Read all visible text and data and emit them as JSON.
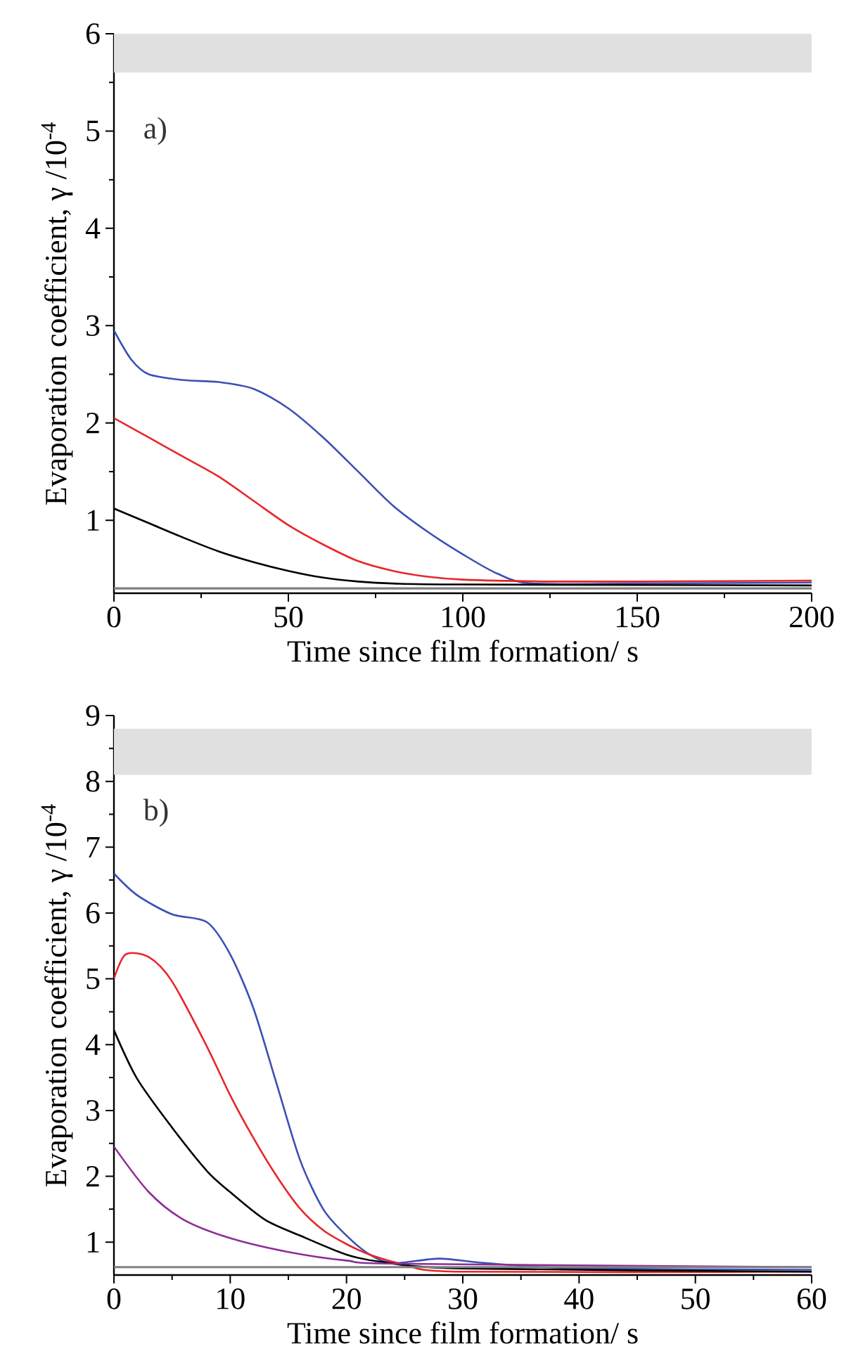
{
  "chart_data": [
    {
      "type": "line",
      "xlabel": "Time since film formation/ s",
      "ylabel": "Evaporation coefficient, γ /10$^{-4}$",
      "annotations": [
        "a)"
      ],
      "xlim": [
        0,
        200
      ],
      "ylim": [
        0.25,
        6
      ],
      "xticks": [
        0,
        50,
        100,
        150,
        200
      ],
      "yticks": [
        1,
        2,
        3,
        4,
        5,
        6
      ],
      "bands": [
        {
          "axis": "y",
          "from": 5.6,
          "to": 6,
          "color": "#e0e0e0"
        }
      ],
      "ref_lines": [
        {
          "axis": "y",
          "value": 0.3,
          "color": "#808080"
        }
      ],
      "series": [
        {
          "color": "#3c50b4",
          "x": [
            0,
            5,
            10,
            20,
            30,
            40,
            50,
            60,
            70,
            80,
            90,
            100,
            110,
            120,
            150,
            200
          ],
          "values": [
            2.95,
            2.65,
            2.5,
            2.44,
            2.42,
            2.35,
            2.15,
            1.85,
            1.5,
            1.15,
            0.88,
            0.65,
            0.45,
            0.35,
            0.35,
            0.36
          ]
        },
        {
          "color": "#e8262a",
          "x": [
            0,
            10,
            20,
            30,
            40,
            50,
            60,
            70,
            80,
            90,
            100,
            125,
            150,
            200
          ],
          "values": [
            2.05,
            1.85,
            1.65,
            1.45,
            1.2,
            0.95,
            0.75,
            0.58,
            0.48,
            0.42,
            0.39,
            0.37,
            0.37,
            0.38
          ]
        },
        {
          "color": "#000000",
          "x": [
            0,
            10,
            20,
            30,
            40,
            50,
            60,
            70,
            80,
            100,
            200
          ],
          "values": [
            1.12,
            0.97,
            0.82,
            0.68,
            0.57,
            0.48,
            0.41,
            0.37,
            0.35,
            0.34,
            0.33
          ]
        }
      ]
    },
    {
      "type": "line",
      "xlabel": "Time since film formation/ s",
      "ylabel": "Evaporation coefficient, γ /10$^{-4}$",
      "annotations": [
        "b)"
      ],
      "xlim": [
        0,
        60
      ],
      "ylim": [
        0.5,
        9
      ],
      "xticks": [
        0,
        10,
        20,
        30,
        40,
        50,
        60
      ],
      "yticks": [
        1,
        2,
        3,
        4,
        5,
        6,
        7,
        8,
        9
      ],
      "bands": [
        {
          "axis": "y",
          "from": 8.1,
          "to": 8.8,
          "color": "#e0e0e0"
        }
      ],
      "ref_lines": [
        {
          "axis": "y",
          "value": 0.62,
          "color": "#808080"
        }
      ],
      "series": [
        {
          "color": "#3c50b4",
          "x": [
            0,
            2,
            5,
            8,
            10,
            12,
            14,
            16,
            18,
            20,
            22,
            24,
            28,
            32,
            40,
            60
          ],
          "values": [
            6.6,
            6.27,
            5.98,
            5.86,
            5.37,
            4.55,
            3.4,
            2.25,
            1.5,
            1.1,
            0.81,
            0.68,
            0.75,
            0.68,
            0.6,
            0.58
          ]
        },
        {
          "color": "#e8262a",
          "x": [
            0,
            1,
            3,
            5,
            8,
            10,
            12,
            14,
            16,
            18,
            20,
            22,
            25,
            30,
            60
          ],
          "values": [
            5.0,
            5.37,
            5.33,
            4.96,
            3.97,
            3.23,
            2.58,
            2.0,
            1.51,
            1.18,
            0.97,
            0.81,
            0.66,
            0.55,
            0.55
          ]
        },
        {
          "color": "#000000",
          "x": [
            0,
            2,
            5,
            8,
            10,
            13,
            16,
            20,
            23,
            30,
            60
          ],
          "values": [
            4.22,
            3.48,
            2.74,
            2.08,
            1.76,
            1.34,
            1.1,
            0.81,
            0.7,
            0.6,
            0.55
          ]
        },
        {
          "color": "#8e2d96",
          "x": [
            0,
            3,
            6,
            10,
            15,
            20,
            25,
            60
          ],
          "values": [
            2.45,
            1.76,
            1.34,
            1.06,
            0.85,
            0.72,
            0.67,
            0.62
          ]
        }
      ]
    }
  ]
}
